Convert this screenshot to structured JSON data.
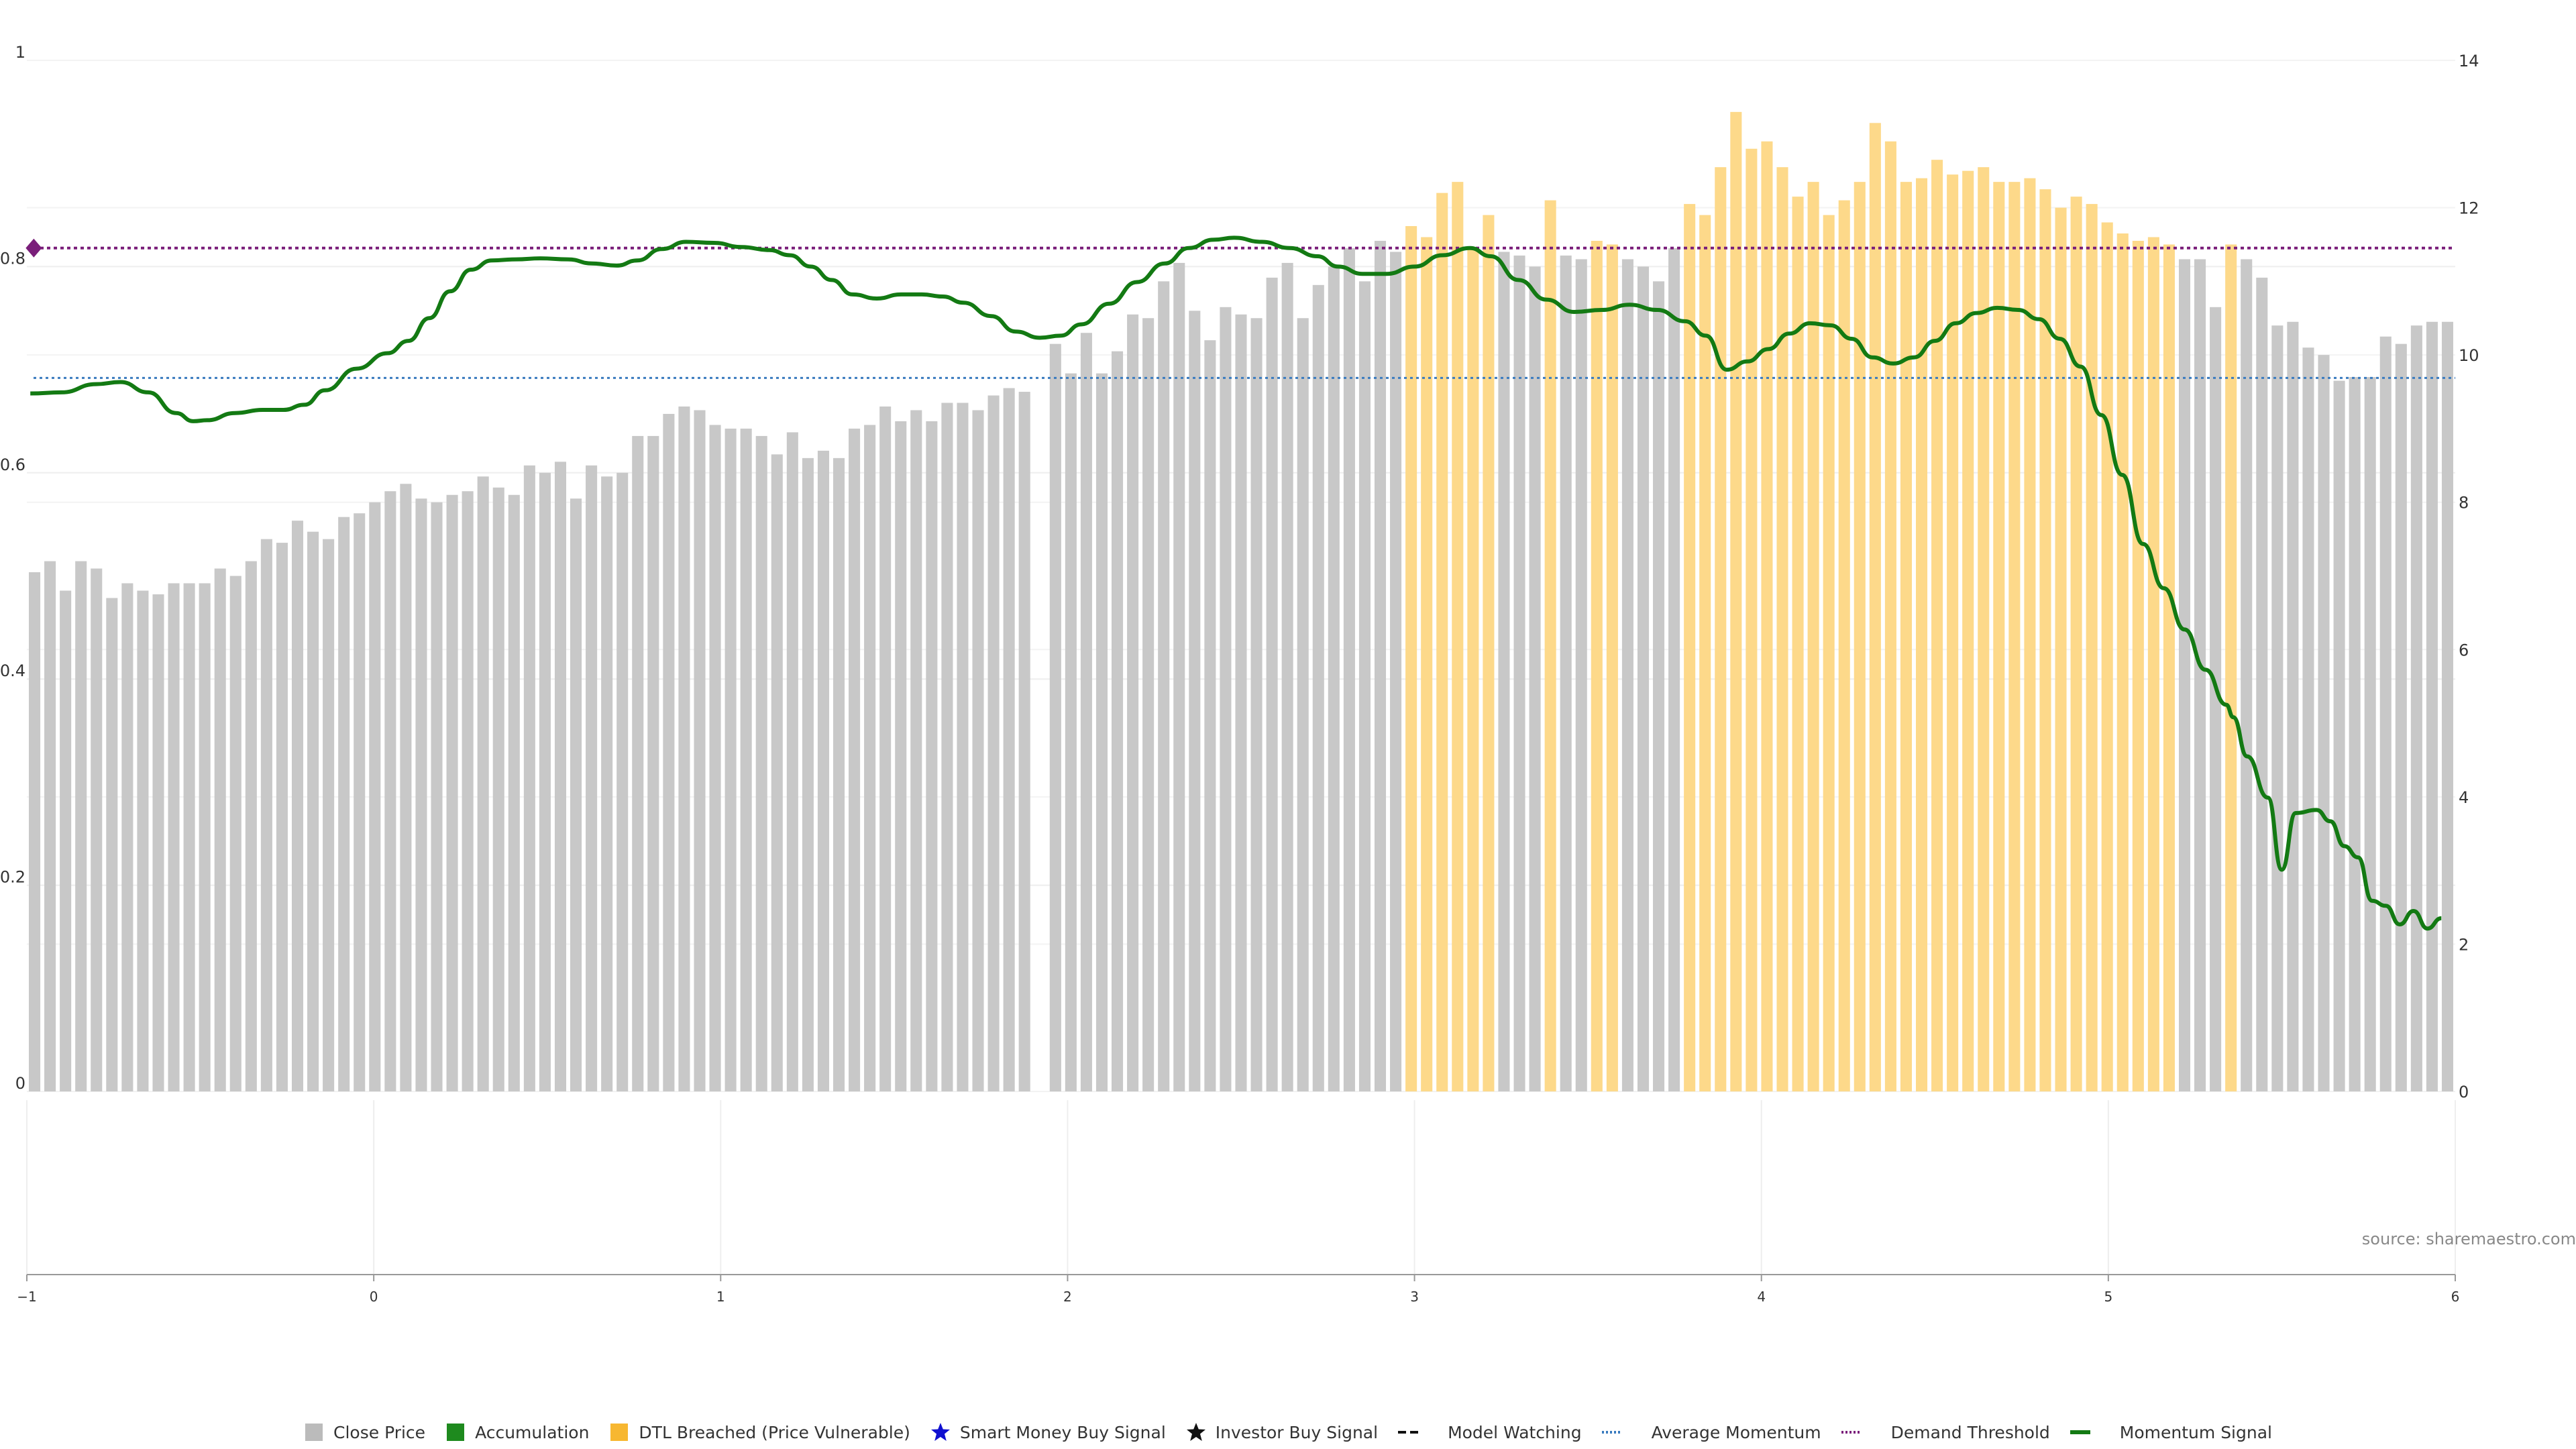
{
  "chart_data": {
    "type": "bar",
    "source": "source: sharemaestro.com",
    "left_axis": {
      "ticks": [
        "0",
        "0.2",
        "0.4",
        "0.6",
        "0.8",
        "1"
      ],
      "range": [
        0,
        1
      ]
    },
    "right_axis": {
      "ticks": [
        "0",
        "2",
        "4",
        "6",
        "8",
        "10",
        "12",
        "14"
      ],
      "range": [
        0,
        14
      ]
    },
    "x_axis": {
      "ticks": [
        "−1",
        "0",
        "1",
        "2",
        "3",
        "4",
        "5",
        "6"
      ],
      "range": [
        -1,
        6
      ]
    },
    "bar_states": [
      "grey",
      "yellow"
    ],
    "bars": [
      {
        "v": 7.05,
        "s": 0
      },
      {
        "v": 7.2,
        "s": 0
      },
      {
        "v": 6.8,
        "s": 0
      },
      {
        "v": 7.2,
        "s": 0
      },
      {
        "v": 7.1,
        "s": 0
      },
      {
        "v": 6.7,
        "s": 0
      },
      {
        "v": 6.9,
        "s": 0
      },
      {
        "v": 6.8,
        "s": 0
      },
      {
        "v": 6.75,
        "s": 0
      },
      {
        "v": 6.9,
        "s": 0
      },
      {
        "v": 6.9,
        "s": 0
      },
      {
        "v": 6.9,
        "s": 0
      },
      {
        "v": 7.1,
        "s": 0
      },
      {
        "v": 7.0,
        "s": 0
      },
      {
        "v": 7.2,
        "s": 0
      },
      {
        "v": 7.5,
        "s": 0
      },
      {
        "v": 7.45,
        "s": 0
      },
      {
        "v": 7.75,
        "s": 0
      },
      {
        "v": 7.6,
        "s": 0
      },
      {
        "v": 7.5,
        "s": 0
      },
      {
        "v": 7.8,
        "s": 0
      },
      {
        "v": 7.85,
        "s": 0
      },
      {
        "v": 8.0,
        "s": 0
      },
      {
        "v": 8.15,
        "s": 0
      },
      {
        "v": 8.25,
        "s": 0
      },
      {
        "v": 8.05,
        "s": 0
      },
      {
        "v": 8.0,
        "s": 0
      },
      {
        "v": 8.1,
        "s": 0
      },
      {
        "v": 8.15,
        "s": 0
      },
      {
        "v": 8.35,
        "s": 0
      },
      {
        "v": 8.2,
        "s": 0
      },
      {
        "v": 8.1,
        "s": 0
      },
      {
        "v": 8.5,
        "s": 0
      },
      {
        "v": 8.4,
        "s": 0
      },
      {
        "v": 8.55,
        "s": 0
      },
      {
        "v": 8.05,
        "s": 0
      },
      {
        "v": 8.5,
        "s": 0
      },
      {
        "v": 8.35,
        "s": 0
      },
      {
        "v": 8.4,
        "s": 0
      },
      {
        "v": 8.9,
        "s": 0
      },
      {
        "v": 8.9,
        "s": 0
      },
      {
        "v": 9.2,
        "s": 0
      },
      {
        "v": 9.3,
        "s": 0
      },
      {
        "v": 9.25,
        "s": 0
      },
      {
        "v": 9.05,
        "s": 0
      },
      {
        "v": 9.0,
        "s": 0
      },
      {
        "v": 9.0,
        "s": 0
      },
      {
        "v": 8.9,
        "s": 0
      },
      {
        "v": 8.65,
        "s": 0
      },
      {
        "v": 8.95,
        "s": 0
      },
      {
        "v": 8.6,
        "s": 0
      },
      {
        "v": 8.7,
        "s": 0
      },
      {
        "v": 8.6,
        "s": 0
      },
      {
        "v": 9.0,
        "s": 0
      },
      {
        "v": 9.05,
        "s": 0
      },
      {
        "v": 9.3,
        "s": 0
      },
      {
        "v": 9.1,
        "s": 0
      },
      {
        "v": 9.25,
        "s": 0
      },
      {
        "v": 9.1,
        "s": 0
      },
      {
        "v": 9.35,
        "s": 0
      },
      {
        "v": 9.35,
        "s": 0
      },
      {
        "v": 9.25,
        "s": 0
      },
      {
        "v": 9.45,
        "s": 0
      },
      {
        "v": 9.55,
        "s": 0
      },
      {
        "v": 9.5,
        "s": 0
      },
      {
        "v": 0,
        "s": 0
      },
      {
        "v": 10.15,
        "s": 0
      },
      {
        "v": 9.75,
        "s": 0
      },
      {
        "v": 10.3,
        "s": 0
      },
      {
        "v": 9.75,
        "s": 0
      },
      {
        "v": 10.05,
        "s": 0
      },
      {
        "v": 10.55,
        "s": 0
      },
      {
        "v": 10.5,
        "s": 0
      },
      {
        "v": 11.0,
        "s": 0
      },
      {
        "v": 11.25,
        "s": 0
      },
      {
        "v": 10.6,
        "s": 0
      },
      {
        "v": 10.2,
        "s": 0
      },
      {
        "v": 10.65,
        "s": 0
      },
      {
        "v": 10.55,
        "s": 0
      },
      {
        "v": 10.5,
        "s": 0
      },
      {
        "v": 11.05,
        "s": 0
      },
      {
        "v": 11.25,
        "s": 0
      },
      {
        "v": 10.5,
        "s": 0
      },
      {
        "v": 10.95,
        "s": 0
      },
      {
        "v": 11.2,
        "s": 0
      },
      {
        "v": 11.45,
        "s": 0
      },
      {
        "v": 11.0,
        "s": 0
      },
      {
        "v": 11.55,
        "s": 0
      },
      {
        "v": 11.4,
        "s": 0
      },
      {
        "v": 11.75,
        "s": 1
      },
      {
        "v": 11.6,
        "s": 1
      },
      {
        "v": 12.2,
        "s": 1
      },
      {
        "v": 12.35,
        "s": 1
      },
      {
        "v": 11.45,
        "s": 1
      },
      {
        "v": 11.9,
        "s": 1
      },
      {
        "v": 11.4,
        "s": 0
      },
      {
        "v": 11.35,
        "s": 0
      },
      {
        "v": 11.2,
        "s": 0
      },
      {
        "v": 12.1,
        "s": 1
      },
      {
        "v": 11.35,
        "s": 0
      },
      {
        "v": 11.3,
        "s": 0
      },
      {
        "v": 11.55,
        "s": 1
      },
      {
        "v": 11.5,
        "s": 1
      },
      {
        "v": 11.3,
        "s": 0
      },
      {
        "v": 11.2,
        "s": 0
      },
      {
        "v": 11.0,
        "s": 0
      },
      {
        "v": 11.45,
        "s": 0
      },
      {
        "v": 12.05,
        "s": 1
      },
      {
        "v": 11.9,
        "s": 1
      },
      {
        "v": 12.55,
        "s": 1
      },
      {
        "v": 13.3,
        "s": 1
      },
      {
        "v": 12.8,
        "s": 1
      },
      {
        "v": 12.9,
        "s": 1
      },
      {
        "v": 12.55,
        "s": 1
      },
      {
        "v": 12.15,
        "s": 1
      },
      {
        "v": 12.35,
        "s": 1
      },
      {
        "v": 11.9,
        "s": 1
      },
      {
        "v": 12.1,
        "s": 1
      },
      {
        "v": 12.35,
        "s": 1
      },
      {
        "v": 13.15,
        "s": 1
      },
      {
        "v": 12.9,
        "s": 1
      },
      {
        "v": 12.35,
        "s": 1
      },
      {
        "v": 12.4,
        "s": 1
      },
      {
        "v": 12.65,
        "s": 1
      },
      {
        "v": 12.45,
        "s": 1
      },
      {
        "v": 12.5,
        "s": 1
      },
      {
        "v": 12.55,
        "s": 1
      },
      {
        "v": 12.35,
        "s": 1
      },
      {
        "v": 12.35,
        "s": 1
      },
      {
        "v": 12.4,
        "s": 1
      },
      {
        "v": 12.25,
        "s": 1
      },
      {
        "v": 12.0,
        "s": 1
      },
      {
        "v": 12.15,
        "s": 1
      },
      {
        "v": 12.05,
        "s": 1
      },
      {
        "v": 11.8,
        "s": 1
      },
      {
        "v": 11.65,
        "s": 1
      },
      {
        "v": 11.55,
        "s": 1
      },
      {
        "v": 11.6,
        "s": 1
      },
      {
        "v": 11.5,
        "s": 1
      },
      {
        "v": 11.3,
        "s": 0
      },
      {
        "v": 11.3,
        "s": 0
      },
      {
        "v": 10.65,
        "s": 0
      },
      {
        "v": 11.5,
        "s": 1
      },
      {
        "v": 11.3,
        "s": 0
      },
      {
        "v": 11.05,
        "s": 0
      },
      {
        "v": 10.4,
        "s": 0
      },
      {
        "v": 10.45,
        "s": 0
      },
      {
        "v": 10.1,
        "s": 0
      },
      {
        "v": 10.0,
        "s": 0
      },
      {
        "v": 9.65,
        "s": 0
      },
      {
        "v": 9.7,
        "s": 0
      },
      {
        "v": 9.7,
        "s": 0
      },
      {
        "v": 10.25,
        "s": 0
      },
      {
        "v": 10.15,
        "s": 0
      },
      {
        "v": 10.4,
        "s": 0
      },
      {
        "v": 10.45,
        "s": 0
      },
      {
        "v": 10.45,
        "s": 0
      }
    ],
    "demand_threshold": 0.818,
    "average_momentum": 0.692,
    "momentum_signal": [
      [
        -0.99,
        0.677
      ],
      [
        -0.9,
        0.678
      ],
      [
        -0.8,
        0.686
      ],
      [
        -0.73,
        0.688
      ],
      [
        -0.65,
        0.678
      ],
      [
        -0.57,
        0.658
      ],
      [
        -0.52,
        0.65
      ],
      [
        -0.48,
        0.651
      ],
      [
        -0.4,
        0.658
      ],
      [
        -0.32,
        0.661
      ],
      [
        -0.26,
        0.661
      ],
      [
        -0.2,
        0.666
      ],
      [
        -0.14,
        0.68
      ],
      [
        -0.05,
        0.701
      ],
      [
        0.04,
        0.716
      ],
      [
        0.1,
        0.728
      ],
      [
        0.16,
        0.75
      ],
      [
        0.22,
        0.776
      ],
      [
        0.28,
        0.797
      ],
      [
        0.34,
        0.806
      ],
      [
        0.41,
        0.807
      ],
      [
        0.48,
        0.808
      ],
      [
        0.56,
        0.807
      ],
      [
        0.63,
        0.803
      ],
      [
        0.7,
        0.801
      ],
      [
        0.76,
        0.806
      ],
      [
        0.83,
        0.817
      ],
      [
        0.9,
        0.824
      ],
      [
        0.98,
        0.823
      ],
      [
        1.06,
        0.819
      ],
      [
        1.14,
        0.816
      ],
      [
        1.2,
        0.811
      ],
      [
        1.26,
        0.8
      ],
      [
        1.32,
        0.787
      ],
      [
        1.38,
        0.773
      ],
      [
        1.45,
        0.769
      ],
      [
        1.52,
        0.773
      ],
      [
        1.58,
        0.773
      ],
      [
        1.64,
        0.771
      ],
      [
        1.7,
        0.765
      ],
      [
        1.78,
        0.752
      ],
      [
        1.85,
        0.737
      ],
      [
        1.92,
        0.731
      ],
      [
        1.98,
        0.733
      ],
      [
        2.04,
        0.744
      ],
      [
        2.12,
        0.764
      ],
      [
        2.2,
        0.785
      ],
      [
        2.28,
        0.803
      ],
      [
        2.35,
        0.818
      ],
      [
        2.42,
        0.826
      ],
      [
        2.48,
        0.828
      ],
      [
        2.56,
        0.824
      ],
      [
        2.64,
        0.818
      ],
      [
        2.72,
        0.81
      ],
      [
        2.78,
        0.8
      ],
      [
        2.85,
        0.793
      ],
      [
        2.92,
        0.793
      ],
      [
        3.0,
        0.8
      ],
      [
        3.08,
        0.811
      ],
      [
        3.16,
        0.818
      ],
      [
        3.22,
        0.81
      ],
      [
        3.3,
        0.787
      ],
      [
        3.38,
        0.768
      ],
      [
        3.46,
        0.756
      ],
      [
        3.54,
        0.758
      ],
      [
        3.62,
        0.763
      ],
      [
        3.7,
        0.758
      ],
      [
        3.78,
        0.747
      ],
      [
        3.84,
        0.733
      ],
      [
        3.9,
        0.7
      ],
      [
        3.96,
        0.708
      ],
      [
        4.02,
        0.72
      ],
      [
        4.08,
        0.735
      ],
      [
        4.14,
        0.745
      ],
      [
        4.2,
        0.743
      ],
      [
        4.26,
        0.73
      ],
      [
        4.32,
        0.712
      ],
      [
        4.38,
        0.706
      ],
      [
        4.44,
        0.712
      ],
      [
        4.5,
        0.728
      ],
      [
        4.56,
        0.745
      ],
      [
        4.62,
        0.755
      ],
      [
        4.68,
        0.76
      ],
      [
        4.74,
        0.758
      ],
      [
        4.8,
        0.749
      ],
      [
        4.86,
        0.73
      ],
      [
        4.92,
        0.703
      ],
      [
        4.98,
        0.656
      ],
      [
        5.04,
        0.598
      ],
      [
        5.1,
        0.531
      ],
      [
        5.16,
        0.488
      ],
      [
        5.22,
        0.448
      ],
      [
        5.28,
        0.409
      ],
      [
        5.34,
        0.375
      ],
      [
        5.36,
        0.363
      ],
      [
        5.4,
        0.325
      ],
      [
        5.46,
        0.285
      ],
      [
        5.5,
        0.215
      ],
      [
        5.54,
        0.27
      ],
      [
        5.6,
        0.273
      ],
      [
        5.64,
        0.262
      ],
      [
        5.68,
        0.238
      ],
      [
        5.72,
        0.227
      ],
      [
        5.76,
        0.185
      ],
      [
        5.8,
        0.18
      ],
      [
        5.84,
        0.162
      ],
      [
        5.88,
        0.175
      ],
      [
        5.92,
        0.158
      ],
      [
        5.96,
        0.168
      ]
    ],
    "demand_marker": [
      -0.98,
      0.818
    ],
    "legend": [
      {
        "label": "Close Price",
        "marker": "square",
        "color": "#bbbbbb"
      },
      {
        "label": "Accumulation",
        "marker": "square",
        "color": "#1e8a1e"
      },
      {
        "label": "DTL Breached (Price Vulnerable)",
        "marker": "square",
        "color": "#f7b731"
      },
      {
        "label": "Smart Money Buy Signal",
        "marker": "star",
        "color": "#1010d0"
      },
      {
        "label": "Investor Buy Signal",
        "marker": "star",
        "color": "#111111"
      },
      {
        "label": "Model Watching",
        "marker": "dash",
        "color": "#111111"
      },
      {
        "label": "Average Momentum",
        "marker": "dotted",
        "color": "#3a7bbf"
      },
      {
        "label": "Demand Threshold",
        "marker": "dotted",
        "color": "#7a1e7a"
      },
      {
        "label": "Momentum Signal",
        "marker": "line",
        "color": "#137a13"
      }
    ],
    "colors": {
      "grey_bar": "#c8c8c8",
      "yellow_bar": "#fdd98a",
      "momentum": "#137a13",
      "average": "#3a7bbf",
      "demand": "#7a1e7a",
      "grid": "#eeeeee",
      "axis": "#999999"
    }
  }
}
